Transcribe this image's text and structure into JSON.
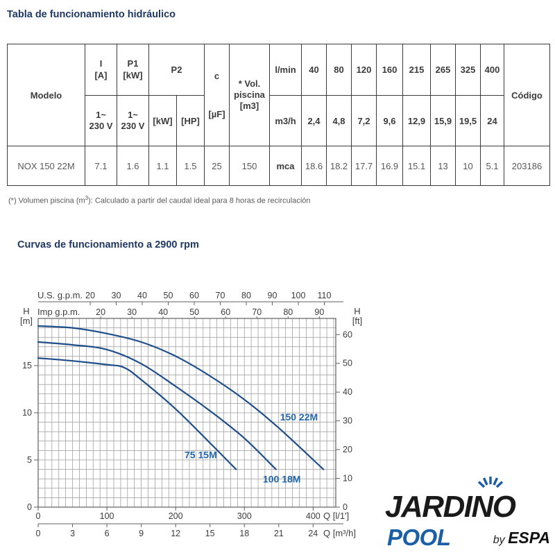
{
  "page": {
    "table_title": "Tabla de funcionamiento hidráulico",
    "curves_title": "Curvas de funcionamiento a 2900 rpm",
    "footnote_prefix": "(*) Volumen piscina (m",
    "footnote_sup": "3",
    "footnote_suffix": "): Calculado a partir del caudal ideal para 8 horas de recirculación"
  },
  "table": {
    "headers": {
      "modelo": "Modelo",
      "i_line1": "I",
      "i_line2": "[A]",
      "p1_line1": "P1",
      "p1_line2": "[kW]",
      "p2": "P2",
      "c": "c",
      "c_unit": "[µF]",
      "vol_line1": "* Vol.",
      "vol_line2": "piscina",
      "vol_line3": "[m3]",
      "v1_line1": "1~",
      "v1_line2": "230 V",
      "kw": "[kW]",
      "hp": "[HP]",
      "lmin": "l/min",
      "m3h": "m3/h",
      "codigo": "Código",
      "flow_lmin": [
        "40",
        "80",
        "120",
        "160",
        "215",
        "265",
        "325",
        "400"
      ],
      "flow_m3h": [
        "2,4",
        "4,8",
        "7,2",
        "9,6",
        "12,9",
        "15,9",
        "19,5",
        "24"
      ]
    },
    "row": {
      "modelo": "NOX 150 22M",
      "i": "7.1",
      "p1": "1.6",
      "p2_kw": "1.1",
      "p2_hp": "1.5",
      "c": "25",
      "vol": "150",
      "unit": "mca",
      "heads": [
        "18.6",
        "18.2",
        "17.7",
        "16.9",
        "15.1",
        "13",
        "10",
        "5.1"
      ],
      "codigo": "203186"
    }
  },
  "chart_data": {
    "type": "line",
    "title": "Curvas de funcionamiento a 2900 rpm",
    "x_axes": {
      "us_gpm": {
        "label": "U.S. g.p.m.",
        "ticks": [
          20,
          30,
          40,
          50,
          60,
          70,
          80,
          90,
          100,
          110
        ],
        "lmin_per_unit": 3.785
      },
      "imp_gpm": {
        "label": "Imp g.p.m.",
        "ticks": [
          20,
          30,
          40,
          50,
          60,
          70,
          80,
          90
        ],
        "lmin_per_unit": 4.546
      },
      "lmin": {
        "label": "Q [l/1']",
        "ticks": [
          0,
          100,
          200,
          300,
          400
        ],
        "lmin_per_unit": 1
      },
      "m3h": {
        "label": "Q [m³/h]",
        "ticks": [
          0,
          3,
          6,
          9,
          12,
          15,
          18,
          21,
          24
        ],
        "lmin_per_unit": 16.667
      }
    },
    "y_axes": {
      "left": {
        "label_line1": "H",
        "label_line2": "[m]",
        "ticks": [
          0,
          5,
          10,
          15
        ],
        "m_per_unit": 1
      },
      "right": {
        "label_line1": "H",
        "label_line2": "[ft]",
        "ticks": [
          0,
          10,
          20,
          30,
          40,
          50,
          60
        ],
        "m_per_unit": 0.3048
      }
    },
    "xlim_lmin": [
      0,
      433
    ],
    "ylim_m": [
      0,
      20
    ],
    "grid": {
      "x_step_lmin": 10,
      "y_step_m": 1
    },
    "series": [
      {
        "name": "150 22M",
        "label_at": [
          352,
          9.2
        ],
        "points": [
          [
            0,
            19.2
          ],
          [
            50,
            19.0
          ],
          [
            100,
            18.4
          ],
          [
            150,
            17.5
          ],
          [
            200,
            16.0
          ],
          [
            250,
            13.9
          ],
          [
            300,
            11.4
          ],
          [
            350,
            8.4
          ],
          [
            415,
            4.0
          ]
        ]
      },
      {
        "name": "100 18M",
        "label_at": [
          327,
          2.6
        ],
        "points": [
          [
            0,
            17.5
          ],
          [
            50,
            17.2
          ],
          [
            100,
            16.7
          ],
          [
            150,
            15.2
          ],
          [
            200,
            12.8
          ],
          [
            250,
            10.2
          ],
          [
            300,
            7.3
          ],
          [
            346,
            4.0
          ]
        ]
      },
      {
        "name": "75 15M",
        "label_at": [
          213,
          5.2
        ],
        "points": [
          [
            0,
            15.8
          ],
          [
            50,
            15.5
          ],
          [
            100,
            15.1
          ],
          [
            125,
            14.8
          ],
          [
            150,
            13.5
          ],
          [
            200,
            10.4
          ],
          [
            250,
            6.8
          ],
          [
            288,
            4.0
          ]
        ]
      }
    ],
    "colors": {
      "curve": "#1d4e89",
      "curve_label": "#2166ac",
      "grid": "#9b9b9b",
      "border": "#5f5f5f",
      "text": "#3c3c3c"
    }
  },
  "logo": {
    "brand": "JARDINO",
    "sub": "POOL",
    "by": "by",
    "company": "ESPA"
  }
}
